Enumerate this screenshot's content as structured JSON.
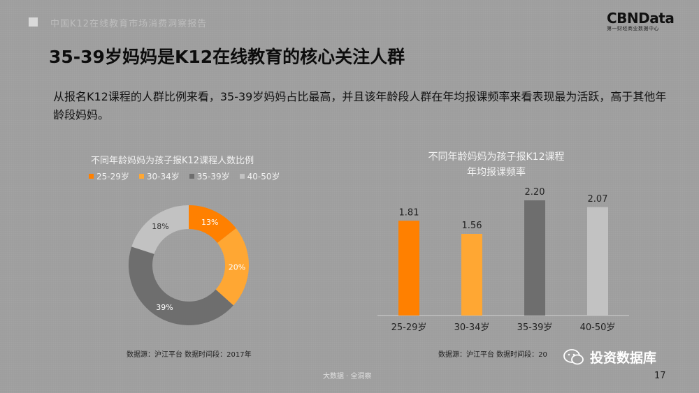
{
  "header": {
    "caption": "中国K12在线教育市场消费洞察报告",
    "logo_text": "CBNData",
    "logo_subtext": "第一财经商业数据中心"
  },
  "title": "35-39岁妈妈是K12在线教育的核心关注人群",
  "intro": "从报名K12课程的人群比例来看，35-39岁妈妈占比最高，并且该年龄段人群在年均报课频率来看表现最为活跃，高于其他年龄段妈妈。",
  "legend": [
    {
      "label": "25-29岁",
      "color": "#ff8000"
    },
    {
      "label": "30-34岁",
      "color": "#ffa733"
    },
    {
      "label": "35-39岁",
      "color": "#6e6e6e"
    },
    {
      "label": "40-50岁",
      "color": "#c2c2c2"
    }
  ],
  "chart_data": [
    {
      "type": "pie",
      "donut": true,
      "title": "不同年龄妈妈为孩子报K12课程人数比例",
      "categories": [
        "25-29岁",
        "30-34岁",
        "35-39岁",
        "40-50岁"
      ],
      "values": [
        13,
        20,
        39,
        18
      ],
      "value_labels": [
        "13%",
        "20%",
        "39%",
        "18%"
      ],
      "colors": [
        "#ff8000",
        "#ffa733",
        "#6e6e6e",
        "#c2c2c2"
      ],
      "legend_position": "top"
    },
    {
      "type": "bar",
      "title": [
        "不同年龄妈妈为孩子报K12课程",
        "年均报课频率"
      ],
      "categories": [
        "25-29岁",
        "30-34岁",
        "35-39岁",
        "40-50岁"
      ],
      "values": [
        1.81,
        1.56,
        2.2,
        2.07
      ],
      "value_labels": [
        "1.81",
        "1.56",
        "2.20",
        "2.07"
      ],
      "colors": [
        "#ff8000",
        "#ffa733",
        "#6e6e6e",
        "#c2c2c2"
      ],
      "ylim": [
        0,
        2.4
      ]
    }
  ],
  "sources": {
    "left": "数据源：沪江平台    数据时间段：2017年",
    "right": "数据源：沪江平台    数据时间段：20"
  },
  "footer": "大数据 · 全洞察",
  "page_number": "17",
  "watermark": "投资数据库"
}
